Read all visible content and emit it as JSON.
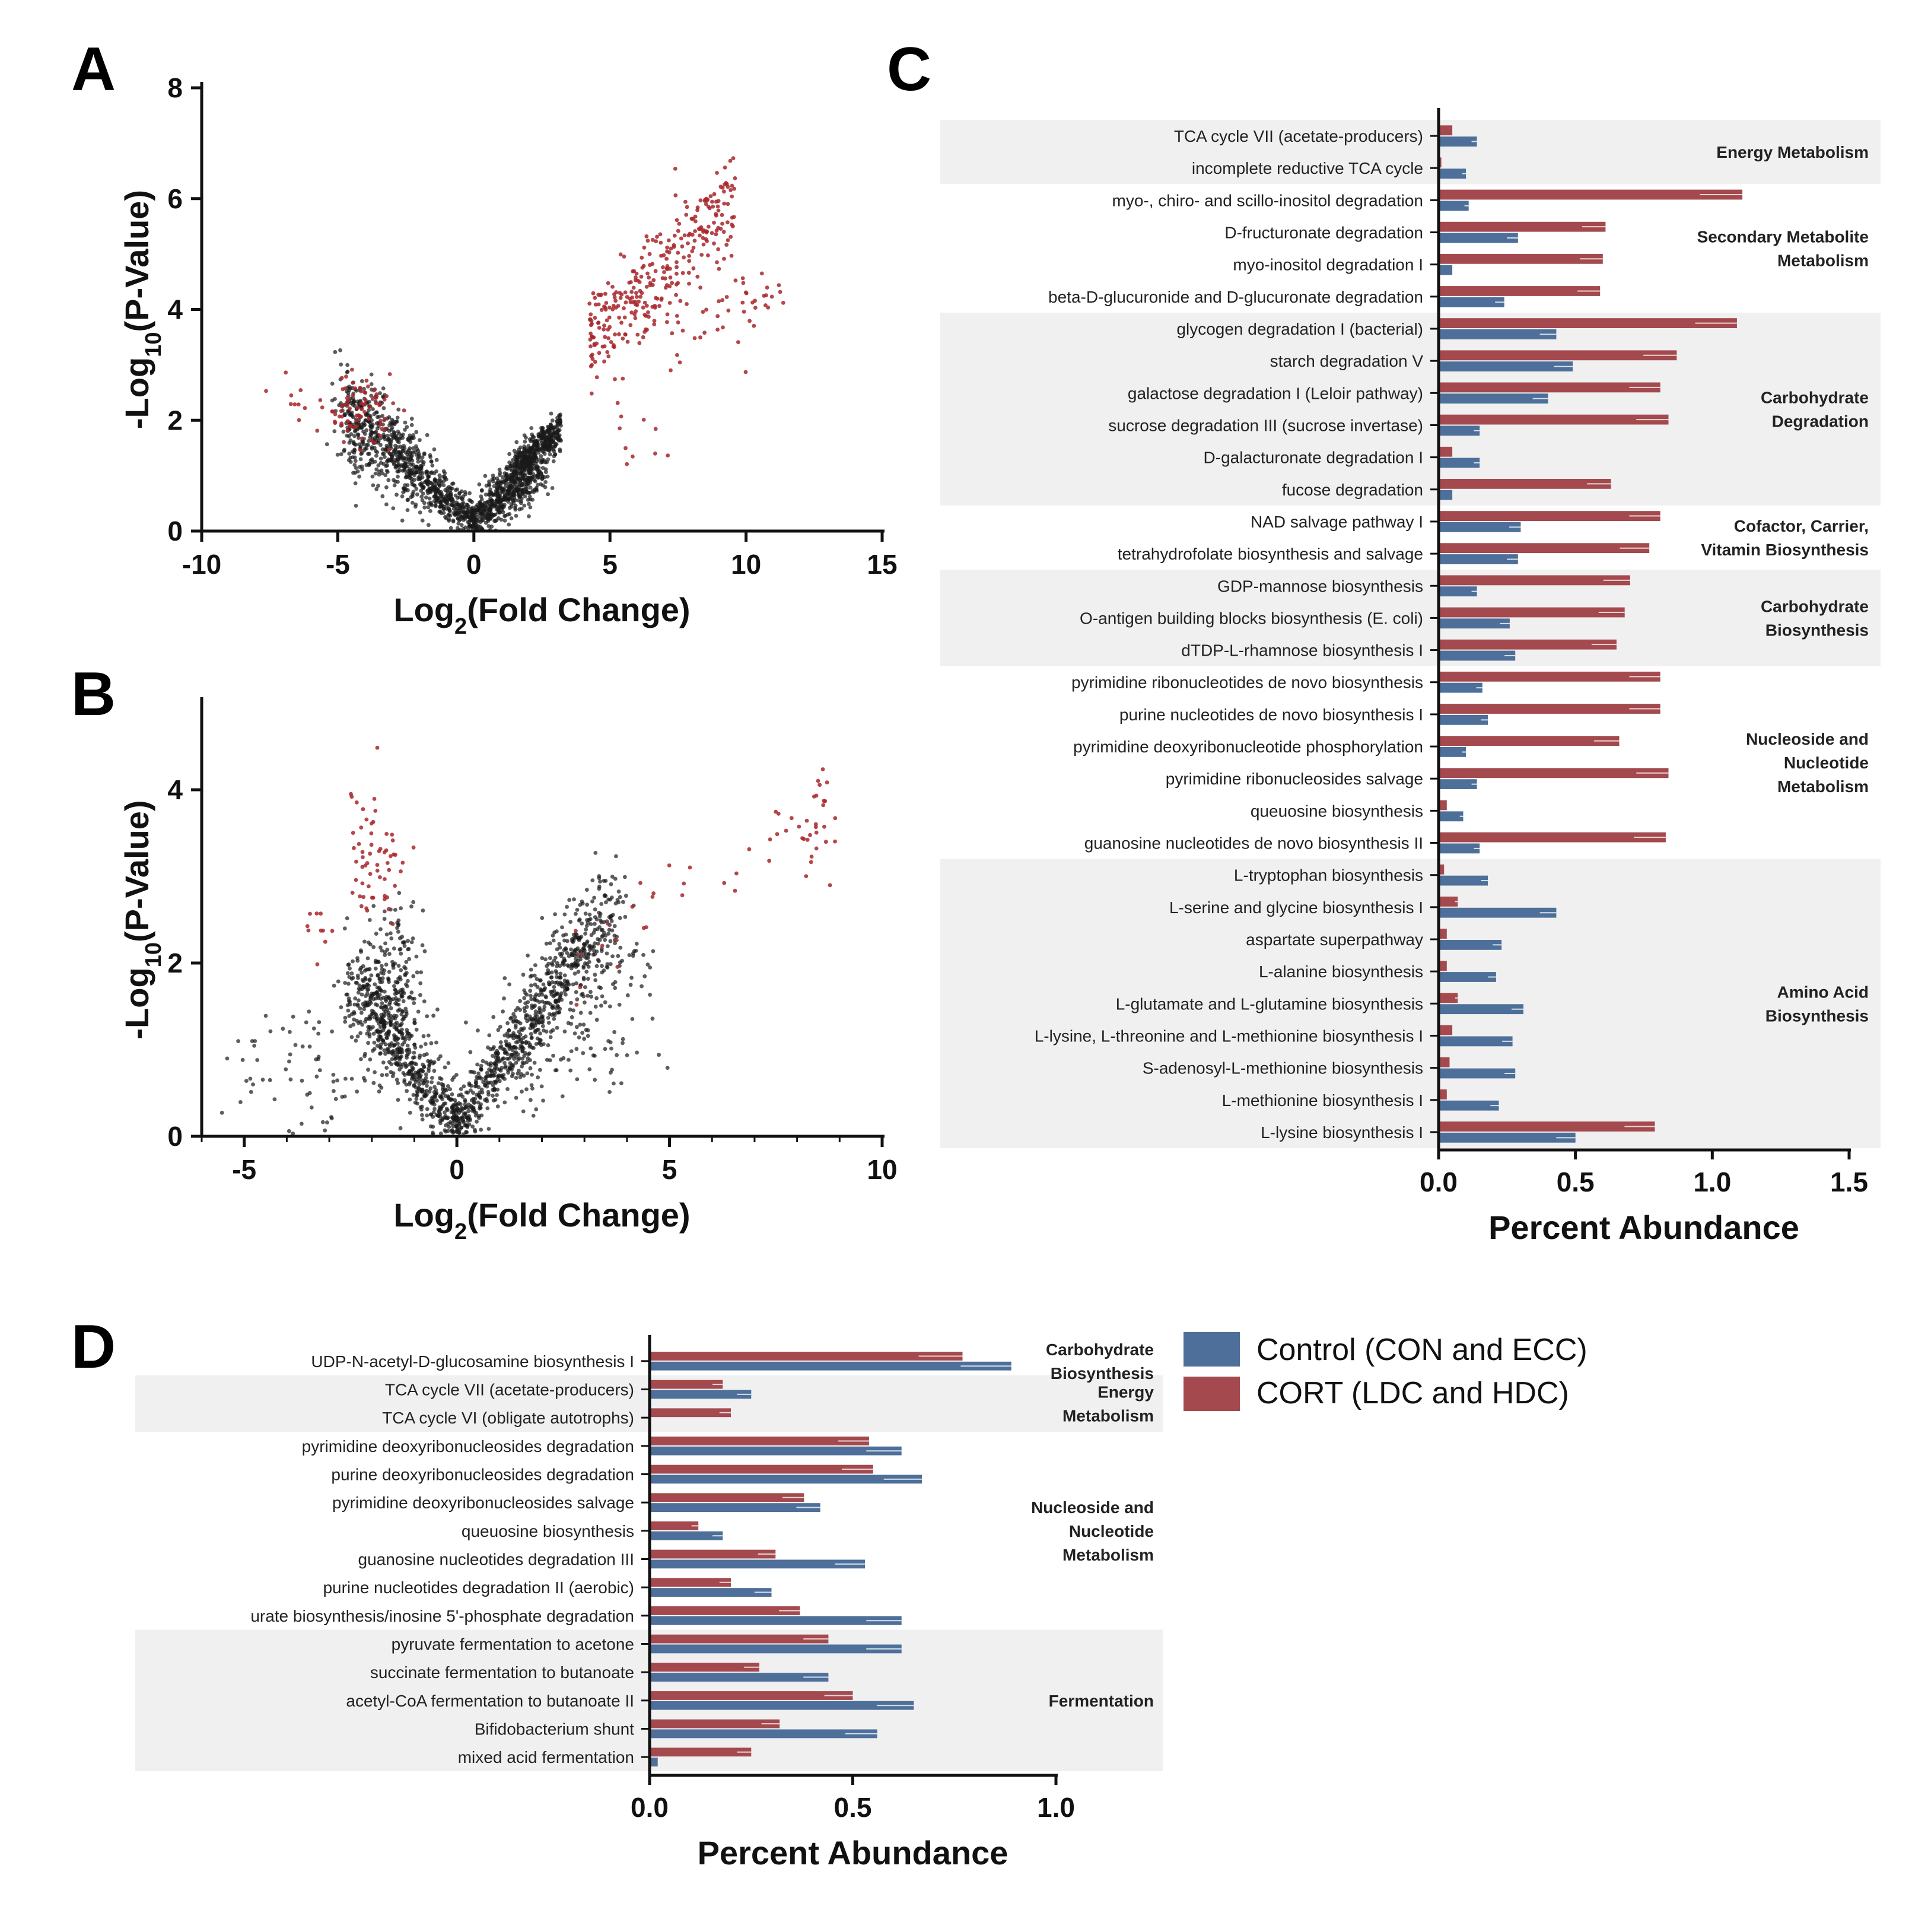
{
  "colors": {
    "control": "#4d6f99",
    "cort": "#a4494d",
    "sig": "#a8272b",
    "nonsig": "#1a1a1a",
    "band": "#f0f0f0"
  },
  "legend": [
    {
      "key": "control",
      "label": "Control (CON and ECC)"
    },
    {
      "key": "cort",
      "label": "CORT (LDC and HDC)"
    }
  ],
  "chart_data": [
    {
      "panel": "A",
      "type": "scatter",
      "xlabel": "Log2(Fold Change)",
      "ylabel": "-Log10(P-Value)",
      "xlim": [
        -10,
        15
      ],
      "ylim": [
        0,
        8
      ],
      "xticks": [
        "-10",
        "-5",
        "0",
        "5",
        "10",
        "15"
      ],
      "yticks": [
        "0",
        "2",
        "4",
        "6",
        "8"
      ],
      "point_groups": [
        {
          "kind": "nonsig",
          "n": 1300,
          "fn": "v",
          "xr": [
            -4.8,
            2.4
          ],
          "spread": 0.32,
          "a": 0.42,
          "b": 0.18
        },
        {
          "kind": "nonsig",
          "n": 260,
          "fn": "line",
          "xr": [
            0.5,
            3.2
          ],
          "y0": 0.5,
          "slope": 0.45,
          "spread": 0.2
        },
        {
          "kind": "nonsig",
          "n": 220,
          "fn": "line",
          "xr": [
            1.5,
            3.2
          ],
          "y0": 0.6,
          "slope": 0.4,
          "spread": 0.15,
          "yoff": 0.6
        },
        {
          "kind": "sig",
          "n": 70,
          "fn": "blob",
          "cx": -4.2,
          "cy": 2.2,
          "sx": 0.6,
          "sy": 0.3
        },
        {
          "kind": "sig",
          "n": 18,
          "fn": "blob",
          "cx": -5.8,
          "cy": 2.3,
          "sx": 1.0,
          "sy": 0.3
        },
        {
          "kind": "sig",
          "n": 300,
          "fn": "line",
          "xr": [
            4.2,
            9.6
          ],
          "y0": 3.4,
          "slope": 0.48,
          "spread": 0.45
        },
        {
          "kind": "sig",
          "n": 30,
          "fn": "blob",
          "cx": 9.8,
          "cy": 4.2,
          "sx": 0.8,
          "sy": 0.3
        },
        {
          "kind": "sig",
          "n": 25,
          "fn": "blob",
          "cx": 7.6,
          "cy": 3.7,
          "sx": 1.0,
          "sy": 0.4
        },
        {
          "kind": "sig",
          "n": 10,
          "fn": "blob",
          "cx": 6.0,
          "cy": 1.8,
          "sx": 0.6,
          "sy": 0.3
        }
      ]
    },
    {
      "panel": "B",
      "type": "scatter",
      "xlabel": "Log2(Fold Change)",
      "ylabel": "-Log10(P-Value)",
      "xlim": [
        -6,
        10
      ],
      "ylim": [
        0,
        5
      ],
      "xticks": [
        "-5",
        "0",
        "5",
        "10"
      ],
      "yticks": [
        "0",
        "2",
        "4"
      ],
      "point_groups": [
        {
          "kind": "nonsig",
          "n": 1300,
          "fn": "v",
          "xr": [
            -2.4,
            3.6
          ],
          "spread": 0.25,
          "a": 0.7,
          "b": 0.1
        },
        {
          "kind": "nonsig",
          "n": 260,
          "fn": "blob",
          "cx": -1.6,
          "cy": 1.6,
          "sx": 0.4,
          "sy": 0.5
        },
        {
          "kind": "nonsig",
          "n": 80,
          "fn": "blob",
          "cx": -3.5,
          "cy": 0.8,
          "sx": 1.0,
          "sy": 0.4
        },
        {
          "kind": "nonsig",
          "n": 90,
          "fn": "blob",
          "cx": 2.6,
          "cy": 1.0,
          "sx": 0.9,
          "sy": 0.3
        },
        {
          "kind": "nonsig",
          "n": 30,
          "fn": "blob",
          "cx": 4.0,
          "cy": 1.9,
          "sx": 0.6,
          "sy": 0.3
        },
        {
          "kind": "sig",
          "n": 60,
          "fn": "blob",
          "cx": -1.9,
          "cy": 3.2,
          "sx": 0.35,
          "sy": 0.5
        },
        {
          "kind": "sig",
          "n": 10,
          "fn": "blob",
          "cx": -3.2,
          "cy": 2.4,
          "sx": 0.4,
          "sy": 0.3
        },
        {
          "kind": "sig",
          "n": 30,
          "fn": "line",
          "xr": [
            2.5,
            8.6
          ],
          "y0": 2.1,
          "slope": 0.28,
          "spread": 0.35
        },
        {
          "kind": "sig",
          "n": 26,
          "fn": "blob",
          "cx": 8.4,
          "cy": 3.6,
          "sx": 0.2,
          "sy": 0.35
        }
      ]
    },
    {
      "panel": "C",
      "type": "bar",
      "orientation": "horizontal",
      "xlabel": "Percent Abundance",
      "xlim": [
        0,
        1.5
      ],
      "xticks": [
        "0.0",
        "0.5",
        "1.0",
        "1.5"
      ],
      "series": [
        {
          "key": "cort"
        },
        {
          "key": "control"
        }
      ],
      "categories": [
        "TCA cycle VII (acetate-producers)",
        "incomplete reductive TCA cycle",
        "myo-, chiro- and scillo-inositol degradation",
        "D-fructuronate degradation",
        "myo-inositol degradation I",
        "beta-D-glucuronide and D-glucuronate degradation",
        "glycogen degradation I (bacterial)",
        "starch degradation V",
        "galactose degradation I (Leloir pathway)",
        "sucrose degradation III (sucrose invertase)",
        "D-galacturonate degradation I",
        "fucose degradation",
        "NAD salvage pathway I",
        "tetrahydrofolate biosynthesis and salvage",
        "GDP-mannose biosynthesis",
        "O-antigen building blocks biosynthesis (E. coli)",
        "dTDP-L-rhamnose biosynthesis I",
        "pyrimidine ribonucleotides de novo biosynthesis",
        "purine nucleotides de novo biosynthesis I",
        "pyrimidine deoxyribonucleotide phosphorylation",
        "pyrimidine ribonucleosides salvage",
        "queuosine biosynthesis",
        "guanosine nucleotides de novo biosynthesis II",
        "L-tryptophan biosynthesis",
        "L-serine and glycine biosynthesis I",
        "aspartate superpathway",
        "L-alanine biosynthesis",
        "L-glutamate and L-glutamine biosynthesis",
        "L-lysine, L-threonine and L-methionine biosynthesis I",
        "S-adenosyl-L-methionine biosynthesis",
        "L-methionine biosynthesis I",
        "L-lysine biosynthesis I"
      ],
      "cort": [
        0.05,
        0.01,
        1.11,
        0.61,
        0.6,
        0.59,
        1.09,
        0.87,
        0.81,
        0.84,
        0.05,
        0.63,
        0.81,
        0.77,
        0.7,
        0.68,
        0.65,
        0.81,
        0.81,
        0.66,
        0.84,
        0.03,
        0.83,
        0.02,
        0.07,
        0.03,
        0.03,
        0.07,
        0.05,
        0.04,
        0.03,
        0.79
      ],
      "control": [
        0.14,
        0.1,
        0.11,
        0.29,
        0.05,
        0.24,
        0.43,
        0.49,
        0.4,
        0.15,
        0.15,
        0.05,
        0.3,
        0.29,
        0.14,
        0.26,
        0.28,
        0.16,
        0.18,
        0.1,
        0.14,
        0.09,
        0.15,
        0.18,
        0.43,
        0.23,
        0.21,
        0.31,
        0.27,
        0.28,
        0.22,
        0.5
      ],
      "groups": [
        {
          "label": [
            "Energy Metabolism"
          ],
          "start": 0,
          "end": 1,
          "shaded": true
        },
        {
          "label": [
            "Secondary Metabolite",
            "Metabolism"
          ],
          "start": 2,
          "end": 5,
          "shaded": false
        },
        {
          "label": [
            "Carbohydrate",
            "Degradation"
          ],
          "start": 6,
          "end": 11,
          "shaded": true
        },
        {
          "label": [
            "Cofactor, Carrier,",
            "Vitamin Biosynthesis"
          ],
          "start": 12,
          "end": 13,
          "shaded": false
        },
        {
          "label": [
            "Carbohydrate",
            "Biosynthesis"
          ],
          "start": 14,
          "end": 16,
          "shaded": true
        },
        {
          "label": [
            "Nucleoside and",
            "Nucleotide",
            "Metabolism"
          ],
          "start": 17,
          "end": 22,
          "shaded": false
        },
        {
          "label": [
            "Amino Acid",
            "Biosynthesis"
          ],
          "start": 23,
          "end": 31,
          "shaded": true
        }
      ]
    },
    {
      "panel": "D",
      "type": "bar",
      "orientation": "horizontal",
      "xlabel": "Percent Abundance",
      "xlim": [
        0,
        1.0
      ],
      "xticks": [
        "0.0",
        "0.5",
        "1.0"
      ],
      "series": [
        {
          "key": "cort"
        },
        {
          "key": "control"
        }
      ],
      "categories": [
        "UDP-N-acetyl-D-glucosamine biosynthesis I",
        "TCA cycle VII (acetate-producers)",
        "TCA cycle VI (obligate autotrophs)",
        "pyrimidine deoxyribonucleosides degradation",
        "purine deoxyribonucleosides degradation",
        "pyrimidine deoxyribonucleosides salvage",
        "queuosine biosynthesis",
        "guanosine nucleotides degradation III",
        "purine nucleotides degradation II (aerobic)",
        "urate biosynthesis/inosine 5'-phosphate degradation",
        "pyruvate fermentation to acetone",
        "succinate fermentation to butanoate",
        "acetyl-CoA fermentation to butanoate II",
        "Bifidobacterium shunt",
        "mixed acid fermentation"
      ],
      "cort": [
        0.77,
        0.18,
        0.2,
        0.54,
        0.55,
        0.38,
        0.12,
        0.31,
        0.2,
        0.37,
        0.44,
        0.27,
        0.5,
        0.32,
        0.25
      ],
      "control": [
        0.89,
        0.25,
        0.0,
        0.62,
        0.67,
        0.42,
        0.18,
        0.53,
        0.3,
        0.62,
        0.62,
        0.44,
        0.65,
        0.56,
        0.02
      ],
      "groups": [
        {
          "label": [
            "Carbohydrate",
            "Biosynthesis"
          ],
          "start": 0,
          "end": 0,
          "shaded": false
        },
        {
          "label": [
            "Energy",
            "Metabolism"
          ],
          "start": 1,
          "end": 2,
          "shaded": true
        },
        {
          "label": [
            "Nucleoside and",
            "Nucleotide",
            "Metabolism"
          ],
          "start": 3,
          "end": 9,
          "shaded": false
        },
        {
          "label": [
            "Fermentation"
          ],
          "start": 10,
          "end": 14,
          "shaded": true
        }
      ]
    }
  ]
}
